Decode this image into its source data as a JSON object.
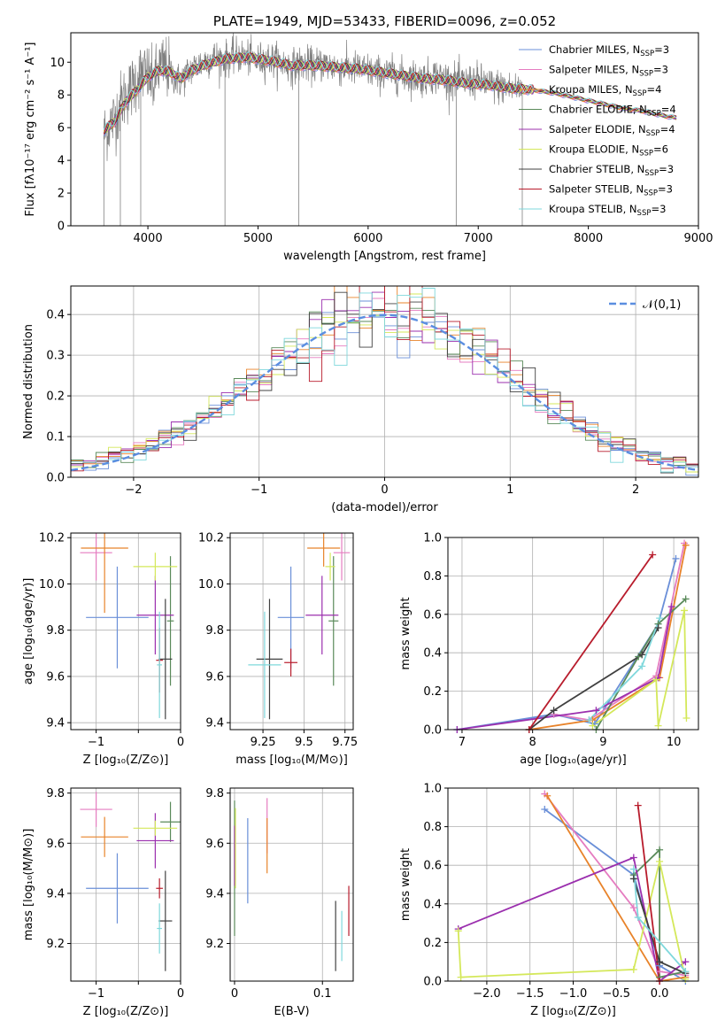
{
  "chart_data": [
    {
      "id": "spectrum",
      "type": "line",
      "title": "PLATE=1949, MJD=53433, FIBERID=0096, z=0.052",
      "xlabel": "wavelength [Angstrom, rest frame]",
      "ylabel": "Flux [fλ10⁻¹⁷ erg cm⁻² s⁻¹ A⁻¹]",
      "xlim": [
        3300,
        9000
      ],
      "ylim": [
        0,
        11.8
      ],
      "xticks": [
        4000,
        5000,
        6000,
        7000,
        8000,
        9000
      ],
      "yticks": [
        0,
        2,
        4,
        6,
        8,
        10
      ],
      "grid": false,
      "legend": "top-right",
      "data_series": {
        "name": "",
        "color": "#808080",
        "x": [
          3600,
          3650,
          3700,
          3750,
          3800,
          3850,
          3900,
          3950,
          4000,
          4050,
          4100,
          4150,
          4200,
          4250,
          4300,
          4350,
          4400,
          4500,
          4600,
          4700,
          4800,
          4900,
          5000,
          5100,
          5200,
          5300,
          5400,
          5500,
          5600,
          5700,
          5800,
          5900,
          6000,
          6100,
          6200,
          6300,
          6400,
          6500,
          6600,
          6700,
          6800,
          6900,
          7000,
          7100,
          7200,
          7300,
          7400
        ],
        "y": [
          5.6,
          6.2,
          6.6,
          7.5,
          8.0,
          8.4,
          9.0,
          9.4,
          9.2,
          8.6,
          9.6,
          9.8,
          9.4,
          9.0,
          8.8,
          9.3,
          9.6,
          10.0,
          10.3,
          10.2,
          10.4,
          10.3,
          10.1,
          10.2,
          10.0,
          9.7,
          9.9,
          9.8,
          9.9,
          9.7,
          9.6,
          9.6,
          9.5,
          9.3,
          9.3,
          9.2,
          9.1,
          9.0,
          9.2,
          9.0,
          8.8,
          8.8,
          8.9,
          8.6,
          8.5,
          8.4,
          8.4
        ],
        "noise_amplitude": 1.2
      },
      "model_continuum": {
        "x": [
          3600,
          3700,
          3800,
          3900,
          4000,
          4100,
          4200,
          4300,
          4400,
          4500,
          4700,
          4900,
          5100,
          5300,
          5500,
          5700,
          5900,
          6100,
          6300,
          6500,
          6700,
          6900,
          7100,
          7300,
          7500,
          7700,
          7900,
          8100,
          8300,
          8500,
          8700,
          8800
        ],
        "y": [
          5.8,
          6.4,
          7.6,
          8.3,
          9.1,
          9.5,
          9.4,
          9.0,
          9.5,
          9.8,
          10.2,
          10.3,
          10.1,
          9.8,
          9.8,
          9.7,
          9.6,
          9.4,
          9.2,
          9.0,
          8.9,
          8.7,
          8.6,
          8.4,
          8.3,
          8.1,
          7.8,
          7.5,
          7.2,
          7.0,
          6.7,
          6.6
        ]
      },
      "series": [
        {
          "name": "Chabrier MILES",
          "n_ssp": "3",
          "color": "#6a8fd8"
        },
        {
          "name": "Salpeter MILES",
          "n_ssp": "3",
          "color": "#e57cc0"
        },
        {
          "name": "Kroupa MILES",
          "n_ssp": "4",
          "color": "#e8832a"
        },
        {
          "name": "Chabrier ELODIE",
          "n_ssp": "4",
          "color": "#5a8a5a"
        },
        {
          "name": "Salpeter ELODIE",
          "n_ssp": "4",
          "color": "#9b2fae"
        },
        {
          "name": "Kroupa ELODIE",
          "n_ssp": "6",
          "color": "#d4e85a"
        },
        {
          "name": "Chabrier STELIB",
          "n_ssp": "3",
          "color": "#404040"
        },
        {
          "name": "Salpeter STELIB",
          "n_ssp": "3",
          "color": "#b81c2c"
        },
        {
          "name": "Kroupa STELIB",
          "n_ssp": "3",
          "color": "#7fd8dc"
        }
      ]
    },
    {
      "id": "residuals",
      "type": "line",
      "xlabel": "(data-model)/error",
      "ylabel": "Normed distribution",
      "xlim": [
        -2.5,
        2.5
      ],
      "ylim": [
        0,
        0.47
      ],
      "xticks": [
        -2,
        -1,
        0,
        1,
        2
      ],
      "yticks": [
        0.0,
        0.1,
        0.2,
        0.3,
        0.4
      ],
      "grid": true,
      "legend": "top-right",
      "reference_curve": {
        "name": "𝒩(0,1)",
        "color": "#5b8ee0",
        "mu": 0,
        "sigma": 1
      },
      "histogram_bins": 50,
      "histogram_colors": [
        "#6a8fd8",
        "#e57cc0",
        "#e8832a",
        "#5a8a5a",
        "#9b2fae",
        "#d4e85a",
        "#404040",
        "#b81c2c",
        "#7fd8dc"
      ]
    },
    {
      "id": "age-vs-z",
      "type": "scatter",
      "xlabel": "Z [log₁₀(Z/Z⊙)]",
      "ylabel": "age  [log₁₀(age/yr)]",
      "xlim": [
        -1.3,
        0
      ],
      "ylim": [
        9.37,
        10.22
      ],
      "xticks": [
        -1,
        -0.5,
        0
      ],
      "xticklabels": [
        "−1",
        "",
        "0"
      ],
      "yticks": [
        9.4,
        9.6,
        9.8,
        10.0,
        10.2
      ],
      "grid": true,
      "points": [
        {
          "color": "#6a8fd8",
          "x": -0.75,
          "y": 9.855,
          "xerr": 0.37,
          "yerr": 0.22
        },
        {
          "color": "#e57cc0",
          "x": -1.0,
          "y": 10.135,
          "xerr": 0.19,
          "yerr": 0.12
        },
        {
          "color": "#e8832a",
          "x": -0.9,
          "y": 10.155,
          "xerr": 0.28,
          "yerr": 0.28
        },
        {
          "color": "#5a8a5a",
          "x": -0.12,
          "y": 9.84,
          "xerr": 0.04,
          "yerr": 0.28
        },
        {
          "color": "#9b2fae",
          "x": -0.3,
          "y": 9.865,
          "xerr": 0.22,
          "yerr": 0.17
        },
        {
          "color": "#d4e85a",
          "x": -0.3,
          "y": 10.075,
          "xerr": 0.26,
          "yerr": 0.06
        },
        {
          "color": "#404040",
          "x": -0.18,
          "y": 9.675,
          "xerr": 0.08,
          "yerr": 0.26
        },
        {
          "color": "#b81c2c",
          "x": -0.25,
          "y": 9.67,
          "xerr": 0.04,
          "yerr": 0.14
        },
        {
          "color": "#7fd8dc",
          "x": -0.25,
          "y": 9.65,
          "xerr": 0.03,
          "yerr": 0.23
        }
      ]
    },
    {
      "id": "age-vs-mass",
      "type": "scatter",
      "xlabel": "mass [log₁₀(M/M⊙)]",
      "ylabel": "",
      "xlim": [
        9.05,
        9.8
      ],
      "ylim": [
        9.37,
        10.22
      ],
      "xticks": [
        9.25,
        9.5,
        9.75
      ],
      "yticks": [
        9.4,
        9.6,
        9.8,
        10.0,
        10.2
      ],
      "grid": true,
      "points": [
        {
          "color": "#6a8fd8",
          "x": 9.42,
          "y": 9.855,
          "xerr": 0.08,
          "yerr": 0.22
        },
        {
          "color": "#e57cc0",
          "x": 9.73,
          "y": 10.135,
          "xerr": 0.05,
          "yerr": 0.12
        },
        {
          "color": "#e8832a",
          "x": 9.62,
          "y": 10.155,
          "xerr": 0.1,
          "yerr": 0.08
        },
        {
          "color": "#5a8a5a",
          "x": 9.68,
          "y": 9.84,
          "xerr": 0.03,
          "yerr": 0.28
        },
        {
          "color": "#9b2fae",
          "x": 9.61,
          "y": 9.865,
          "xerr": 0.1,
          "yerr": 0.17
        },
        {
          "color": "#d4e85a",
          "x": 9.66,
          "y": 10.075,
          "xerr": 0.03,
          "yerr": 0.06
        },
        {
          "color": "#404040",
          "x": 9.29,
          "y": 9.675,
          "xerr": 0.08,
          "yerr": 0.26
        },
        {
          "color": "#b81c2c",
          "x": 9.42,
          "y": 9.66,
          "xerr": 0.04,
          "yerr": 0.06
        },
        {
          "color": "#7fd8dc",
          "x": 9.26,
          "y": 9.65,
          "xerr": 0.1,
          "yerr": 0.23
        }
      ]
    },
    {
      "id": "mass-weight-vs-age",
      "type": "line",
      "xlabel": "age  [log₁₀(age/yr)]",
      "ylabel": "mass weight",
      "xlim": [
        6.8,
        10.35
      ],
      "ylim": [
        0,
        1.0
      ],
      "xticks": [
        7,
        8,
        9,
        10
      ],
      "yticks": [
        0.0,
        0.2,
        0.4,
        0.6,
        0.8,
        1.0
      ],
      "grid": true,
      "series": [
        {
          "color": "#6a8fd8",
          "x": [
            6.93,
            8.3,
            8.88,
            9.78,
            10.03
          ],
          "y": [
            0.0,
            0.08,
            0.03,
            0.55,
            0.89
          ]
        },
        {
          "color": "#e57cc0",
          "x": [
            8.3,
            8.8,
            9.75,
            10.15
          ],
          "y": [
            0.08,
            0.05,
            0.28,
            0.97
          ]
        },
        {
          "color": "#e8832a",
          "x": [
            7.95,
            8.85,
            9.8,
            10.17
          ],
          "y": [
            0.0,
            0.05,
            0.27,
            0.96
          ]
        },
        {
          "color": "#5a8a5a",
          "x": [
            8.9,
            9.5,
            9.78,
            10.17
          ],
          "y": [
            0.0,
            0.38,
            0.55,
            0.68
          ]
        },
        {
          "color": "#9b2fae",
          "x": [
            6.93,
            8.9,
            9.78,
            9.97
          ],
          "y": [
            0.0,
            0.1,
            0.27,
            0.64
          ]
        },
        {
          "color": "#d4e85a",
          "x": [
            8.85,
            9.75,
            9.78,
            10.15,
            10.18
          ],
          "y": [
            0.02,
            0.26,
            0.02,
            0.62,
            0.06
          ]
        },
        {
          "color": "#404040",
          "x": [
            7.95,
            8.3,
            9.55,
            9.78
          ],
          "y": [
            0.0,
            0.1,
            0.39,
            0.53
          ]
        },
        {
          "color": "#b81c2c",
          "x": [
            7.95,
            9.7
          ],
          "y": [
            0.0,
            0.91
          ]
        },
        {
          "color": "#7fd8dc",
          "x": [
            8.8,
            9.55,
            9.8
          ],
          "y": [
            0.05,
            0.33,
            0.58
          ]
        }
      ]
    },
    {
      "id": "mass-vs-z",
      "type": "scatter",
      "xlabel": "Z [log₁₀(Z/Z⊙)]",
      "ylabel": "mass [log₁₀(M/M⊙)]",
      "xlim": [
        -1.3,
        0
      ],
      "ylim": [
        9.05,
        9.82
      ],
      "xticks": [
        -1,
        -0.5,
        0
      ],
      "xticklabels": [
        "−1",
        "",
        "0"
      ],
      "yticks": [
        9.2,
        9.4,
        9.6,
        9.8
      ],
      "grid": true,
      "points": [
        {
          "color": "#6a8fd8",
          "x": -0.75,
          "y": 9.42,
          "xerr": 0.37,
          "yerr": 0.14
        },
        {
          "color": "#e57cc0",
          "x": -1.0,
          "y": 9.735,
          "xerr": 0.19,
          "yerr": 0.07
        },
        {
          "color": "#e8832a",
          "x": -0.9,
          "y": 9.625,
          "xerr": 0.28,
          "yerr": 0.08
        },
        {
          "color": "#5a8a5a",
          "x": -0.12,
          "y": 9.685,
          "xerr": 0.12,
          "yerr": 0.08
        },
        {
          "color": "#9b2fae",
          "x": -0.3,
          "y": 9.61,
          "xerr": 0.22,
          "yerr": 0.11
        },
        {
          "color": "#d4e85a",
          "x": -0.3,
          "y": 9.66,
          "xerr": 0.26,
          "yerr": 0.03
        },
        {
          "color": "#404040",
          "x": -0.18,
          "y": 9.29,
          "xerr": 0.08,
          "yerr": 0.2
        },
        {
          "color": "#b81c2c",
          "x": -0.25,
          "y": 9.42,
          "xerr": 0.04,
          "yerr": 0.04
        },
        {
          "color": "#7fd8dc",
          "x": -0.25,
          "y": 9.26,
          "xerr": 0.03,
          "yerr": 0.1
        }
      ]
    },
    {
      "id": "mass-vs-ebv",
      "type": "scatter",
      "xlabel": "E(B-V)",
      "ylabel": "",
      "xlim": [
        -0.005,
        0.135
      ],
      "ylim": [
        9.05,
        9.82
      ],
      "xticks": [
        0.0,
        0.1
      ],
      "yticks": [
        9.2,
        9.4,
        9.6,
        9.8
      ],
      "grid": true,
      "points": [
        {
          "color": "#6a8fd8",
          "x": 0.015,
          "y": 9.53,
          "xerr": 0.0,
          "yerr": 0.17
        },
        {
          "color": "#e57cc0",
          "x": 0.037,
          "y": 9.67,
          "xerr": 0.0,
          "yerr": 0.11
        },
        {
          "color": "#e8832a",
          "x": 0.037,
          "y": 9.59,
          "xerr": 0.0,
          "yerr": 0.11
        },
        {
          "color": "#5a8a5a",
          "x": 0.0,
          "y": 9.5,
          "xerr": 0.0,
          "yerr": 0.27
        },
        {
          "color": "#9b2fae",
          "x": 0.0,
          "y": 9.55,
          "xerr": 0.0,
          "yerr": 0.12
        },
        {
          "color": "#d4e85a",
          "x": 0.001,
          "y": 9.58,
          "xerr": 0.0,
          "yerr": 0.16
        },
        {
          "color": "#404040",
          "x": 0.115,
          "y": 9.23,
          "xerr": 0.0,
          "yerr": 0.14
        },
        {
          "color": "#b81c2c",
          "x": 0.13,
          "y": 9.33,
          "xerr": 0.0,
          "yerr": 0.1
        },
        {
          "color": "#7fd8dc",
          "x": 0.122,
          "y": 9.23,
          "xerr": 0.0,
          "yerr": 0.1
        }
      ]
    },
    {
      "id": "mass-weight-vs-z",
      "type": "line",
      "xlabel": "Z [log₁₀(Z/Z⊙)]",
      "ylabel": "mass weight",
      "xlim": [
        -2.45,
        0.45
      ],
      "ylim": [
        0,
        1.0
      ],
      "xticks": [
        -2.0,
        -1.5,
        -1.0,
        -0.5,
        0.0
      ],
      "xticklabels": [
        "−2.0",
        "−1.5",
        "−1.0",
        "−0.5",
        "0.0"
      ],
      "yticks": [
        0.0,
        0.2,
        0.4,
        0.6,
        0.8,
        1.0
      ],
      "grid": true,
      "series": [
        {
          "color": "#6a8fd8",
          "x": [
            -1.33,
            -0.3,
            0.0,
            0.3
          ],
          "y": [
            0.89,
            0.55,
            0.08,
            0.0
          ]
        },
        {
          "color": "#e57cc0",
          "x": [
            -1.33,
            -0.3,
            0.0,
            0.3
          ],
          "y": [
            0.97,
            0.38,
            0.05,
            0.03
          ]
        },
        {
          "color": "#e8832a",
          "x": [
            -1.3,
            0.0,
            0.3
          ],
          "y": [
            0.96,
            0.0,
            0.02
          ]
        },
        {
          "color": "#5a8a5a",
          "x": [
            -0.3,
            0.0,
            0.0,
            0.3
          ],
          "y": [
            0.55,
            0.68,
            0.02,
            0.05
          ]
        },
        {
          "color": "#9b2fae",
          "x": [
            -2.33,
            -0.3,
            0.0,
            0.3
          ],
          "y": [
            0.27,
            0.64,
            0.0,
            0.1
          ]
        },
        {
          "color": "#d4e85a",
          "x": [
            -2.33,
            -2.3,
            -0.3,
            0.0,
            0.3
          ],
          "y": [
            0.26,
            0.02,
            0.06,
            0.62,
            0.01
          ]
        },
        {
          "color": "#404040",
          "x": [
            -0.3,
            0.0,
            0.3
          ],
          "y": [
            0.53,
            0.1,
            0.04
          ]
        },
        {
          "color": "#b81c2c",
          "x": [
            -0.25,
            0.0
          ],
          "y": [
            0.91,
            0.0
          ]
        },
        {
          "color": "#7fd8dc",
          "x": [
            -0.3,
            -0.25,
            0.3
          ],
          "y": [
            0.58,
            0.33,
            0.05
          ]
        }
      ]
    }
  ]
}
